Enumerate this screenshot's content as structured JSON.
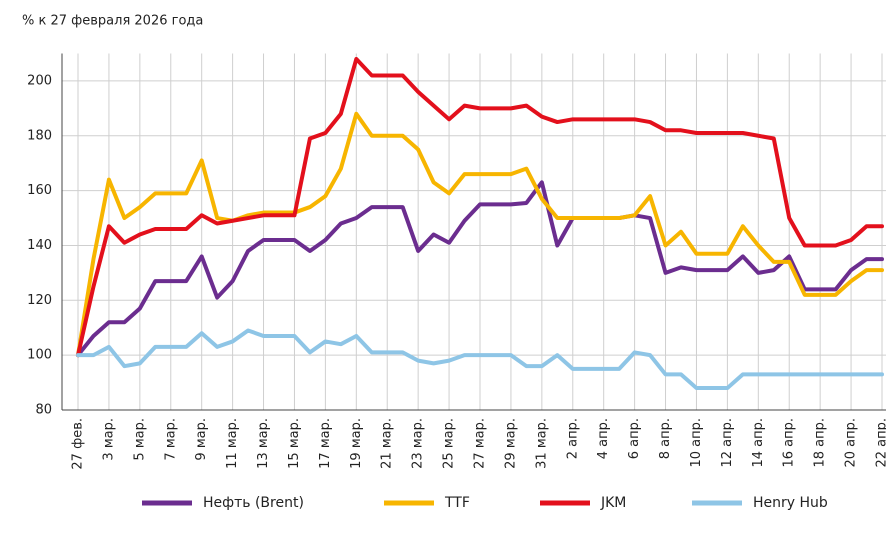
{
  "chart_data": {
    "type": "line",
    "subtitle": "% к 27 февраля 2026 года",
    "categories": [
      "27 фев.",
      null,
      "3 мар.",
      null,
      "5 мар.",
      null,
      "7 мар.",
      null,
      "9 мар.",
      null,
      "11 мар.",
      null,
      "13 мар.",
      null,
      "15 мар.",
      null,
      "17 мар.",
      null,
      "19 мар.",
      null,
      "21 мар.",
      null,
      "23 мар.",
      null,
      "25 мар.",
      null,
      "27 мар.",
      null,
      "29 мар.",
      null,
      "31 мар.",
      null,
      "2 апр.",
      null,
      "4 апр.",
      null,
      "6 апр.",
      null,
      "8 апр.",
      null,
      "10 апр.",
      null,
      "12 апр.",
      null,
      "14 апр.",
      null,
      "16 апр.",
      null,
      "18 апр.",
      null,
      "20 апр.",
      null,
      "22 апр."
    ],
    "series": [
      {
        "name": "Нефть (Brent)",
        "color": "#6b2d8f",
        "values": [
          100,
          107,
          112,
          112,
          117,
          127,
          127,
          127,
          136,
          121,
          127,
          138,
          142,
          142,
          142,
          138,
          142,
          148,
          150,
          154,
          154,
          154,
          138,
          144,
          141,
          149,
          155,
          155,
          155,
          155.5,
          163,
          140,
          150,
          150,
          150,
          150,
          151,
          150,
          130,
          132,
          131,
          131,
          131,
          136,
          130,
          131,
          136,
          124,
          124,
          124,
          131,
          135,
          135
        ]
      },
      {
        "name": "TTF",
        "color": "#f7b500",
        "values": [
          100,
          135,
          164,
          150,
          154,
          159,
          159,
          159,
          171,
          150,
          149,
          151,
          152,
          152,
          152,
          154,
          158,
          168,
          188,
          180,
          180,
          180,
          175,
          163,
          159,
          166,
          166,
          166,
          166,
          168,
          157,
          150,
          150,
          150,
          150,
          150,
          151,
          158,
          140,
          145,
          137,
          137,
          137,
          147,
          140,
          134,
          134,
          122,
          122,
          122,
          127,
          131,
          131
        ]
      },
      {
        "name": "JKM",
        "color": "#e3101c",
        "values": [
          100,
          125,
          147,
          141,
          144,
          146,
          146,
          146,
          151,
          148,
          149,
          150,
          151,
          151,
          151,
          179,
          181,
          188,
          208,
          202,
          202,
          202,
          196,
          191,
          186,
          191,
          190,
          190,
          190,
          191,
          187,
          185,
          186,
          186,
          186,
          186,
          186,
          185,
          182,
          182,
          181,
          181,
          181,
          181,
          180,
          179,
          150,
          140,
          140,
          140,
          142,
          147,
          147
        ]
      },
      {
        "name": "Henry Hub",
        "color": "#8ec5e6",
        "values": [
          100,
          100,
          103,
          96,
          97,
          103,
          103,
          103,
          108,
          103,
          105,
          109,
          107,
          107,
          107,
          101,
          105,
          104,
          107,
          101,
          101,
          101,
          98,
          97,
          98,
          100,
          100,
          100,
          100,
          96,
          96,
          100,
          95,
          95,
          95,
          95,
          101,
          100,
          93,
          93,
          88,
          88,
          88,
          93,
          93,
          93,
          93,
          93,
          93,
          93,
          93,
          93,
          93
        ]
      }
    ],
    "ylim": [
      80,
      210
    ],
    "yticks": [
      80,
      100,
      120,
      140,
      160,
      180,
      200
    ],
    "grid": true
  }
}
